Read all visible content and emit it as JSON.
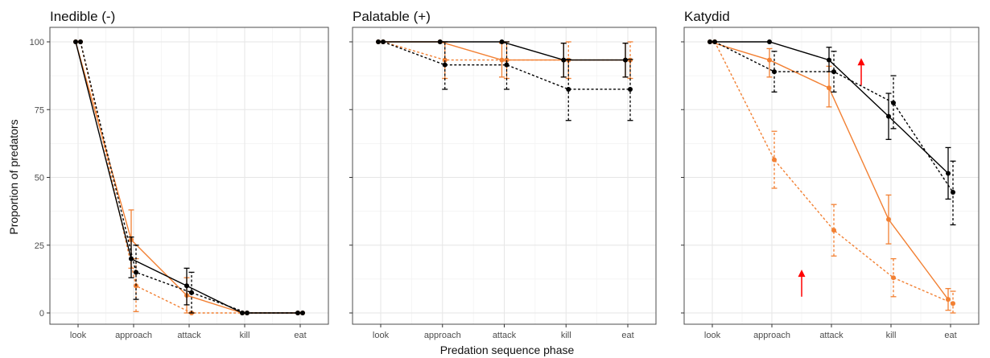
{
  "figure": {
    "xlabel": "Predation sequence phase",
    "ylabel": "Proportion of predators"
  },
  "chart_data": [
    {
      "type": "line",
      "title": "Inedible (-)",
      "categories": [
        "look",
        "approach",
        "attack",
        "kill",
        "eat"
      ],
      "ylim": [
        0,
        100
      ],
      "yticks": [
        0,
        25,
        50,
        75,
        100
      ],
      "grid": true,
      "series": [
        {
          "color": "#000000",
          "linestyle": "solid",
          "values": [
            100,
            20,
            10,
            0,
            0
          ],
          "err": [
            [
              100,
              100
            ],
            [
              13,
              28
            ],
            [
              3,
              16.5
            ],
            [
              0,
              0
            ],
            [
              0,
              0
            ]
          ]
        },
        {
          "color": "#000000",
          "linestyle": "dashed",
          "values": [
            100,
            15,
            7.5,
            0,
            0
          ],
          "err": [
            [
              100,
              100
            ],
            [
              5,
              25
            ],
            [
              0,
              15
            ],
            [
              0,
              0
            ],
            [
              0,
              0
            ]
          ]
        },
        {
          "color": "#f28033",
          "linestyle": "solid",
          "values": [
            100,
            27,
            6.5,
            0,
            0
          ],
          "err": [
            [
              100,
              100
            ],
            [
              16.5,
              38
            ],
            [
              0,
              13
            ],
            [
              0,
              0
            ],
            [
              0,
              0
            ]
          ]
        },
        {
          "color": "#f28033",
          "linestyle": "dashed",
          "values": [
            100,
            10,
            0,
            0,
            0
          ],
          "err": [
            [
              100,
              100
            ],
            [
              0.5,
              20
            ],
            [
              0,
              0
            ],
            [
              0,
              0
            ],
            [
              0,
              0
            ]
          ]
        }
      ]
    },
    {
      "type": "line",
      "title": "Palatable (+)",
      "categories": [
        "look",
        "approach",
        "attack",
        "kill",
        "eat"
      ],
      "ylim": [
        0,
        100
      ],
      "yticks": [
        0,
        25,
        50,
        75,
        100
      ],
      "grid": true,
      "series": [
        {
          "color": "#000000",
          "linestyle": "solid",
          "values": [
            100,
            100,
            100,
            93.3,
            93.3
          ],
          "err": [
            [
              100,
              100
            ],
            [
              100,
              100
            ],
            [
              100,
              100
            ],
            [
              87,
              99.5
            ],
            [
              87,
              99.5
            ]
          ]
        },
        {
          "color": "#000000",
          "linestyle": "dashed",
          "values": [
            100,
            91.5,
            91.5,
            82.5,
            82.5
          ],
          "err": [
            [
              100,
              100
            ],
            [
              82.5,
              100
            ],
            [
              82.5,
              100
            ],
            [
              71,
              93.5
            ],
            [
              71,
              93.5
            ]
          ]
        },
        {
          "color": "#f28033",
          "linestyle": "solid",
          "values": [
            100,
            100,
            93.3,
            93.3,
            93.3
          ],
          "err": [
            [
              100,
              100
            ],
            [
              100,
              100
            ],
            [
              87,
              99.5
            ],
            [
              87,
              99.5
            ],
            [
              87,
              99.5
            ]
          ]
        },
        {
          "color": "#f28033",
          "linestyle": "dashed",
          "values": [
            100,
            93.3,
            93.3,
            93.3,
            93.3
          ],
          "err": [
            [
              100,
              100
            ],
            [
              86.5,
              100
            ],
            [
              86.5,
              100
            ],
            [
              86.5,
              100
            ],
            [
              86.5,
              100
            ]
          ]
        }
      ]
    },
    {
      "type": "line",
      "title": "Katydid",
      "categories": [
        "look",
        "approach",
        "attack",
        "kill",
        "eat"
      ],
      "ylim": [
        0,
        100
      ],
      "yticks": [
        0,
        25,
        50,
        75,
        100
      ],
      "grid": true,
      "series": [
        {
          "color": "#000000",
          "linestyle": "solid",
          "values": [
            100,
            100,
            93.3,
            72.5,
            51.5
          ],
          "err": [
            [
              100,
              100
            ],
            [
              100,
              100
            ],
            [
              89,
              98
            ],
            [
              64,
              81
            ],
            [
              42,
              61
            ]
          ]
        },
        {
          "color": "#000000",
          "linestyle": "dashed",
          "values": [
            100,
            89,
            89,
            77.5,
            44.5
          ],
          "err": [
            [
              100,
              100
            ],
            [
              81.5,
              96.5
            ],
            [
              81.5,
              96.5
            ],
            [
              68,
              87.5
            ],
            [
              32.5,
              56
            ]
          ]
        },
        {
          "color": "#f28033",
          "linestyle": "solid",
          "values": [
            100,
            93.3,
            83,
            34.5,
            5
          ],
          "err": [
            [
              100,
              100
            ],
            [
              87,
              97.5
            ],
            [
              76,
              91
            ],
            [
              25.5,
              43.5
            ],
            [
              1,
              9
            ]
          ]
        },
        {
          "color": "#f28033",
          "linestyle": "dashed",
          "values": [
            100,
            56.5,
            30.5,
            13,
            3.5
          ],
          "err": [
            [
              100,
              100
            ],
            [
              46,
              67
            ],
            [
              21,
              40
            ],
            [
              6,
              20
            ],
            [
              0,
              8
            ]
          ]
        }
      ],
      "annotations": [
        {
          "type": "arrow-up",
          "color": "#ff0000",
          "x": 1.5,
          "y_tip": 16,
          "y_base": 6
        },
        {
          "type": "arrow-up",
          "color": "#ff0000",
          "x": 2.5,
          "y_tip": 94,
          "y_base": 84
        }
      ]
    }
  ]
}
